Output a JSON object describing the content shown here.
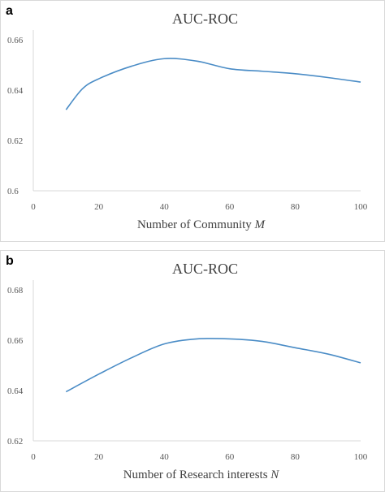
{
  "colors": {
    "series": "#4a8cc6",
    "axis": "#d9d9d9",
    "text": "#595959"
  },
  "chart_data": [
    {
      "panel": "a",
      "type": "line",
      "title": "AUC-ROC",
      "xlabel_prefix": "Number of Community ",
      "xlabel_var": "M",
      "ylabel": "",
      "xlim": [
        0,
        100
      ],
      "ylim": [
        0.6,
        0.66
      ],
      "xticks": [
        0,
        20,
        40,
        60,
        80,
        100
      ],
      "yticks": [
        0.6,
        0.62,
        0.64,
        0.66
      ],
      "ytick_labels": [
        "0.6",
        "0.62",
        "0.64",
        "0.66"
      ],
      "grid": false,
      "series": [
        {
          "x": [
            10,
            15,
            20,
            30,
            40,
            50,
            60,
            70,
            80,
            90,
            100
          ],
          "y": [
            0.6322,
            0.6405,
            0.6445,
            0.6495,
            0.6525,
            0.6515,
            0.6485,
            0.6475,
            0.6465,
            0.645,
            0.6432
          ]
        }
      ]
    },
    {
      "panel": "b",
      "type": "line",
      "title": "AUC-ROC",
      "xlabel_prefix": "Number of Research interests ",
      "xlabel_var": "N",
      "ylabel": "",
      "xlim": [
        0,
        100
      ],
      "ylim": [
        0.62,
        0.68
      ],
      "xticks": [
        0,
        20,
        40,
        60,
        80,
        100
      ],
      "yticks": [
        0.62,
        0.64,
        0.66,
        0.68
      ],
      "ytick_labels": [
        "0.62",
        "0.64",
        "0.66",
        "0.68"
      ],
      "grid": false,
      "series": [
        {
          "x": [
            10,
            20,
            30,
            40,
            50,
            60,
            70,
            80,
            90,
            100
          ],
          "y": [
            0.6395,
            0.6465,
            0.653,
            0.6585,
            0.6605,
            0.6605,
            0.6595,
            0.657,
            0.6545,
            0.651
          ]
        }
      ]
    }
  ]
}
